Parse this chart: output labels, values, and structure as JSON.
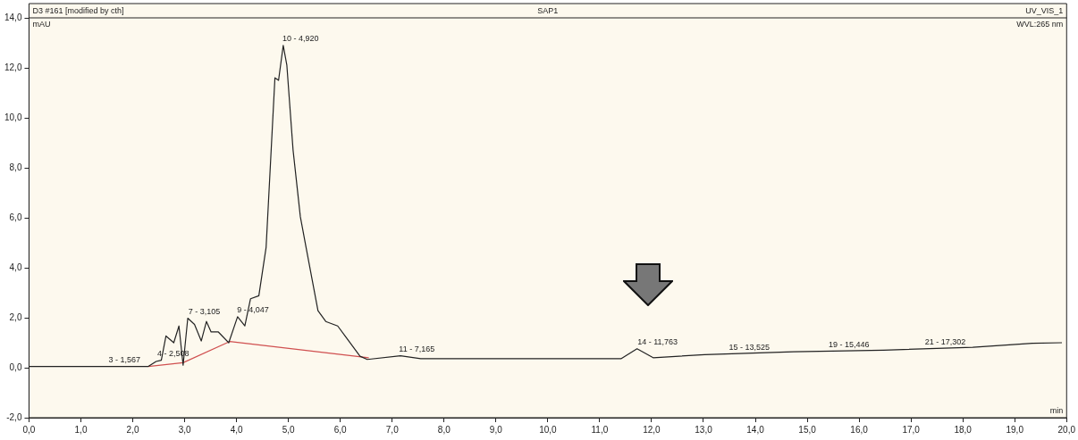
{
  "chart_data": {
    "type": "line",
    "title": "SAP1",
    "subtitle": "D3 #161 [modified by cth]",
    "xlabel": "min",
    "ylabel": "mAU",
    "xlim": [
      0,
      20
    ],
    "ylim": [
      -2,
      14
    ],
    "xticks": [
      {
        "value": 0,
        "label": "0,0"
      },
      {
        "value": 1,
        "label": "1,0"
      },
      {
        "value": 2,
        "label": "2,0"
      },
      {
        "value": 3,
        "label": "3,0"
      },
      {
        "value": 4,
        "label": "4,0"
      },
      {
        "value": 5,
        "label": "5,0"
      },
      {
        "value": 6,
        "label": "6,0"
      },
      {
        "value": 7,
        "label": "7,0"
      },
      {
        "value": 8,
        "label": "8,0"
      },
      {
        "value": 9,
        "label": "9,0"
      },
      {
        "value": 10,
        "label": "10,0"
      },
      {
        "value": 11,
        "label": "11,0"
      },
      {
        "value": 12,
        "label": "12,0"
      },
      {
        "value": 13,
        "label": "13,0"
      },
      {
        "value": 14,
        "label": "14,0"
      },
      {
        "value": 15,
        "label": "15,0"
      },
      {
        "value": 16,
        "label": "16,0"
      },
      {
        "value": 17,
        "label": "17,0"
      },
      {
        "value": 18,
        "label": "18,0"
      },
      {
        "value": 19,
        "label": "19,0"
      },
      {
        "value": 20,
        "label": "20,0"
      }
    ],
    "yticks": [
      {
        "value": -2,
        "label": "-2,0"
      },
      {
        "value": 0,
        "label": "0,0"
      },
      {
        "value": 2,
        "label": "2,0"
      },
      {
        "value": 4,
        "label": "4,0"
      },
      {
        "value": 6,
        "label": "6,0"
      },
      {
        "value": 8,
        "label": "8,0"
      },
      {
        "value": 10,
        "label": "10,0"
      },
      {
        "value": 12,
        "label": "12,0"
      },
      {
        "value": 14,
        "label": "14,0"
      }
    ],
    "grid": false,
    "legend": false,
    "marker": "none",
    "line_style": "solid",
    "series": [
      {
        "color": "#222222",
        "x": [
          0,
          1,
          2,
          2.3,
          2.45,
          2.55,
          2.64,
          2.79,
          2.89,
          2.97,
          3.06,
          3.19,
          3.32,
          3.42,
          3.51,
          3.65,
          3.85,
          4.02,
          4.16,
          4.27,
          4.43,
          4.57,
          4.74,
          4.81,
          4.9,
          4.97,
          5.09,
          5.23,
          5.34,
          5.57,
          5.72,
          5.95,
          6.12,
          6.38,
          6.52,
          7.16,
          7.55,
          8.14,
          11.41,
          11.72,
          12.03,
          13.02,
          14.74,
          16.47,
          18.19,
          19.34,
          19.91
        ],
        "values": [
          0.05,
          0.05,
          0.05,
          0.05,
          0.25,
          0.3,
          1.27,
          1.0,
          1.67,
          0.1,
          1.98,
          1.73,
          1.07,
          1.85,
          1.43,
          1.43,
          1.0,
          2.04,
          1.67,
          2.76,
          2.88,
          4.82,
          11.6,
          11.5,
          12.9,
          12.1,
          8.7,
          6.04,
          4.82,
          2.28,
          1.85,
          1.67,
          1.19,
          0.46,
          0.33,
          0.48,
          0.36,
          0.36,
          0.36,
          0.76,
          0.4,
          0.52,
          0.64,
          0.7,
          0.82,
          0.98,
          1.0
        ]
      },
      {
        "color": "#d05050",
        "x": [
          2.3,
          2.97,
          3.87,
          6.55
        ],
        "values": [
          0.05,
          0.2,
          1.05,
          0.4
        ]
      }
    ],
    "annotations": [
      "UV_VIS_1",
      "WVL:265 nm",
      {
        "text": "3 - 1,567",
        "x": 1.567,
        "y": 0.05
      },
      {
        "text": "4 - 2,508",
        "x": 2.508,
        "y": 0.3
      },
      {
        "text": "7 - 3,105",
        "x": 3.105,
        "y": 1.98
      },
      {
        "text": "9 - 4,047",
        "x": 4.047,
        "y": 2.04
      },
      {
        "text": "10 - 4,920",
        "x": 4.92,
        "y": 12.9
      },
      {
        "text": "11 - 7,165",
        "x": 7.165,
        "y": 0.48
      },
      {
        "text": "14 - 11,763",
        "x": 11.763,
        "y": 0.76
      },
      {
        "text": "15 - 13,525",
        "x": 13.525,
        "y": 0.55
      },
      {
        "text": "19 - 15,446",
        "x": 15.446,
        "y": 0.66
      },
      {
        "text": "21 - 17,302",
        "x": 17.302,
        "y": 0.75
      }
    ]
  }
}
